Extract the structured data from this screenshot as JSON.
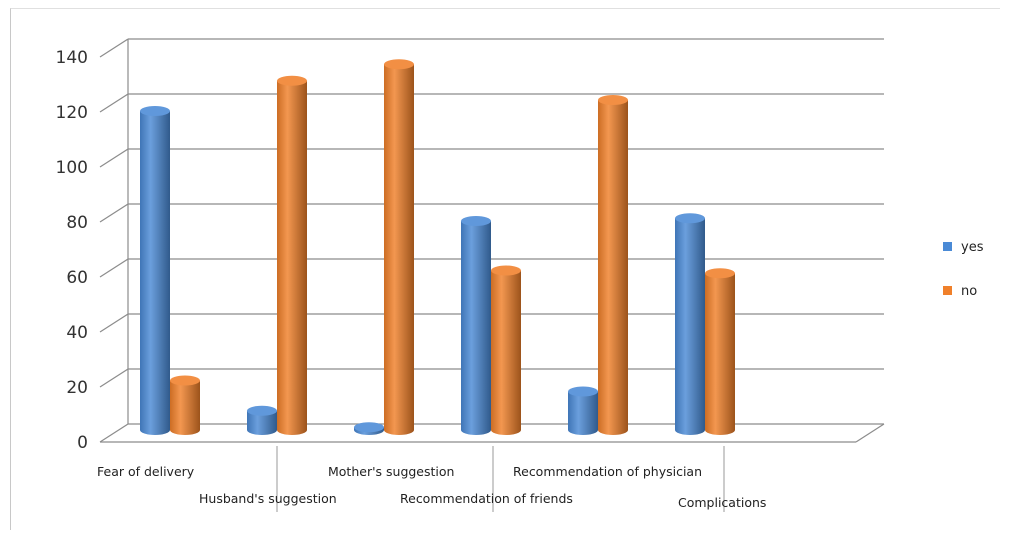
{
  "chart_data": {
    "type": "bar",
    "title": "",
    "xlabel": "",
    "ylabel": "",
    "ylim": [
      0,
      140
    ],
    "yticks": [
      0,
      20,
      40,
      60,
      80,
      100,
      120,
      140
    ],
    "grid": true,
    "legend_position": "right",
    "categories": [
      "Fear of delivery",
      "Husband's suggestion",
      "Mother's suggestion",
      "Recommendation of friends",
      "Recommendation of physician",
      "Complications"
    ],
    "series": [
      {
        "name": "yes",
        "color": "#4a8ad6",
        "values": [
          116,
          7,
          1,
          76,
          14,
          77
        ]
      },
      {
        "name": "no",
        "color": "#f0802a",
        "values": [
          18,
          127,
          133,
          58,
          120,
          57
        ]
      }
    ]
  }
}
